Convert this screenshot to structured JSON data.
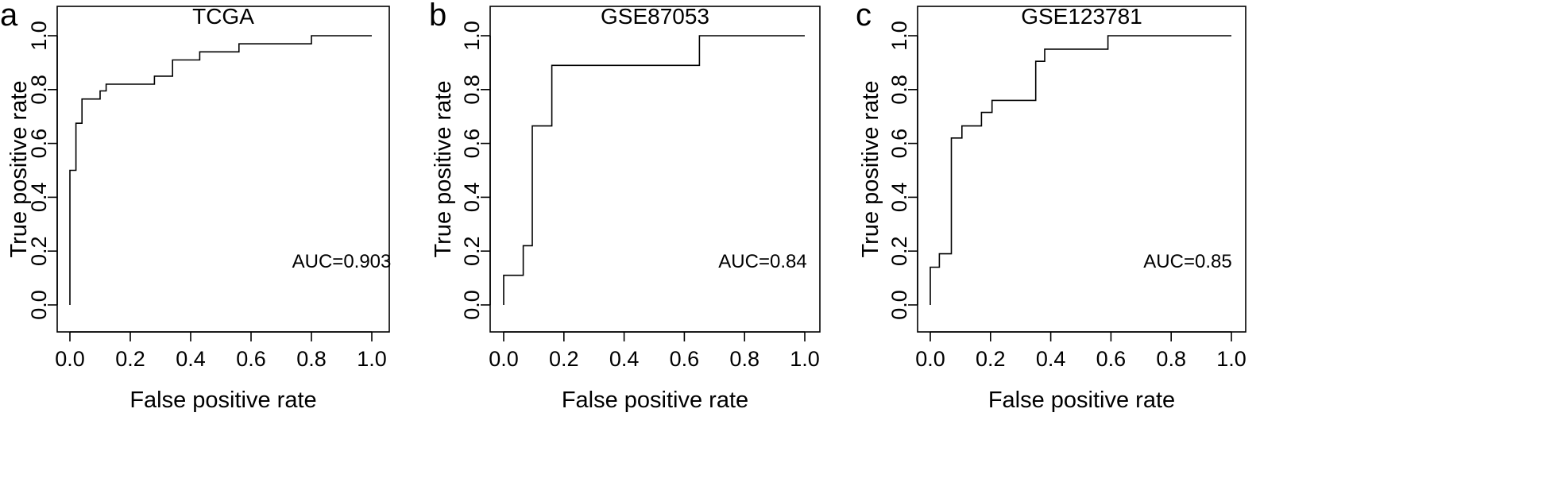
{
  "chart_data": [
    {
      "type": "line",
      "panel_label": "a",
      "title": "TCGA",
      "xlabel": "False positive rate",
      "ylabel": "True positive rate",
      "xlim": [
        0,
        1
      ],
      "ylim": [
        0,
        1
      ],
      "xticks": [
        "0.0",
        "0.2",
        "0.4",
        "0.6",
        "0.8",
        "1.0"
      ],
      "yticks": [
        "0.0",
        "0.2",
        "0.4",
        "0.6",
        "0.8",
        "1.0"
      ],
      "annotation": "AUC=0.903",
      "grid": false,
      "x": [
        0,
        0,
        0.02,
        0.02,
        0.04,
        0.04,
        0.1,
        0.1,
        0.12,
        0.12,
        0.28,
        0.28,
        0.34,
        0.34,
        0.43,
        0.43,
        0.56,
        0.56,
        0.8,
        0.8,
        1.0
      ],
      "y": [
        0,
        0.5,
        0.5,
        0.675,
        0.675,
        0.765,
        0.765,
        0.795,
        0.795,
        0.82,
        0.82,
        0.85,
        0.85,
        0.91,
        0.91,
        0.94,
        0.94,
        0.97,
        0.97,
        1.0,
        1.0
      ]
    },
    {
      "type": "line",
      "panel_label": "b",
      "title": "GSE87053",
      "xlabel": "False positive rate",
      "ylabel": "True positive rate",
      "xlim": [
        0,
        1
      ],
      "ylim": [
        0,
        1
      ],
      "xticks": [
        "0.0",
        "0.2",
        "0.4",
        "0.6",
        "0.8",
        "1.0"
      ],
      "yticks": [
        "0.0",
        "0.2",
        "0.4",
        "0.6",
        "0.8",
        "1.0"
      ],
      "annotation": "AUC=0.84",
      "grid": false,
      "x": [
        0,
        0,
        0.065,
        0.065,
        0.095,
        0.095,
        0.16,
        0.16,
        0.65,
        0.65,
        1.0
      ],
      "y": [
        0,
        0.11,
        0.11,
        0.22,
        0.22,
        0.665,
        0.665,
        0.89,
        0.89,
        1.0,
        1.0
      ]
    },
    {
      "type": "line",
      "panel_label": "c",
      "title": "GSE123781",
      "xlabel": "False positive rate",
      "ylabel": "True positive rate",
      "xlim": [
        0,
        1
      ],
      "ylim": [
        0,
        1
      ],
      "xticks": [
        "0.0",
        "0.2",
        "0.4",
        "0.6",
        "0.8",
        "1.0"
      ],
      "yticks": [
        "0.0",
        "0.2",
        "0.4",
        "0.6",
        "0.8",
        "1.0"
      ],
      "annotation": "AUC=0.85",
      "grid": false,
      "x": [
        0,
        0,
        0.03,
        0.03,
        0.07,
        0.07,
        0.105,
        0.105,
        0.17,
        0.17,
        0.205,
        0.205,
        0.35,
        0.35,
        0.38,
        0.38,
        0.59,
        0.59,
        1.0
      ],
      "y": [
        0,
        0.14,
        0.14,
        0.19,
        0.19,
        0.62,
        0.62,
        0.665,
        0.665,
        0.715,
        0.715,
        0.76,
        0.76,
        0.905,
        0.905,
        0.95,
        0.95,
        1.0,
        1.0
      ]
    }
  ]
}
